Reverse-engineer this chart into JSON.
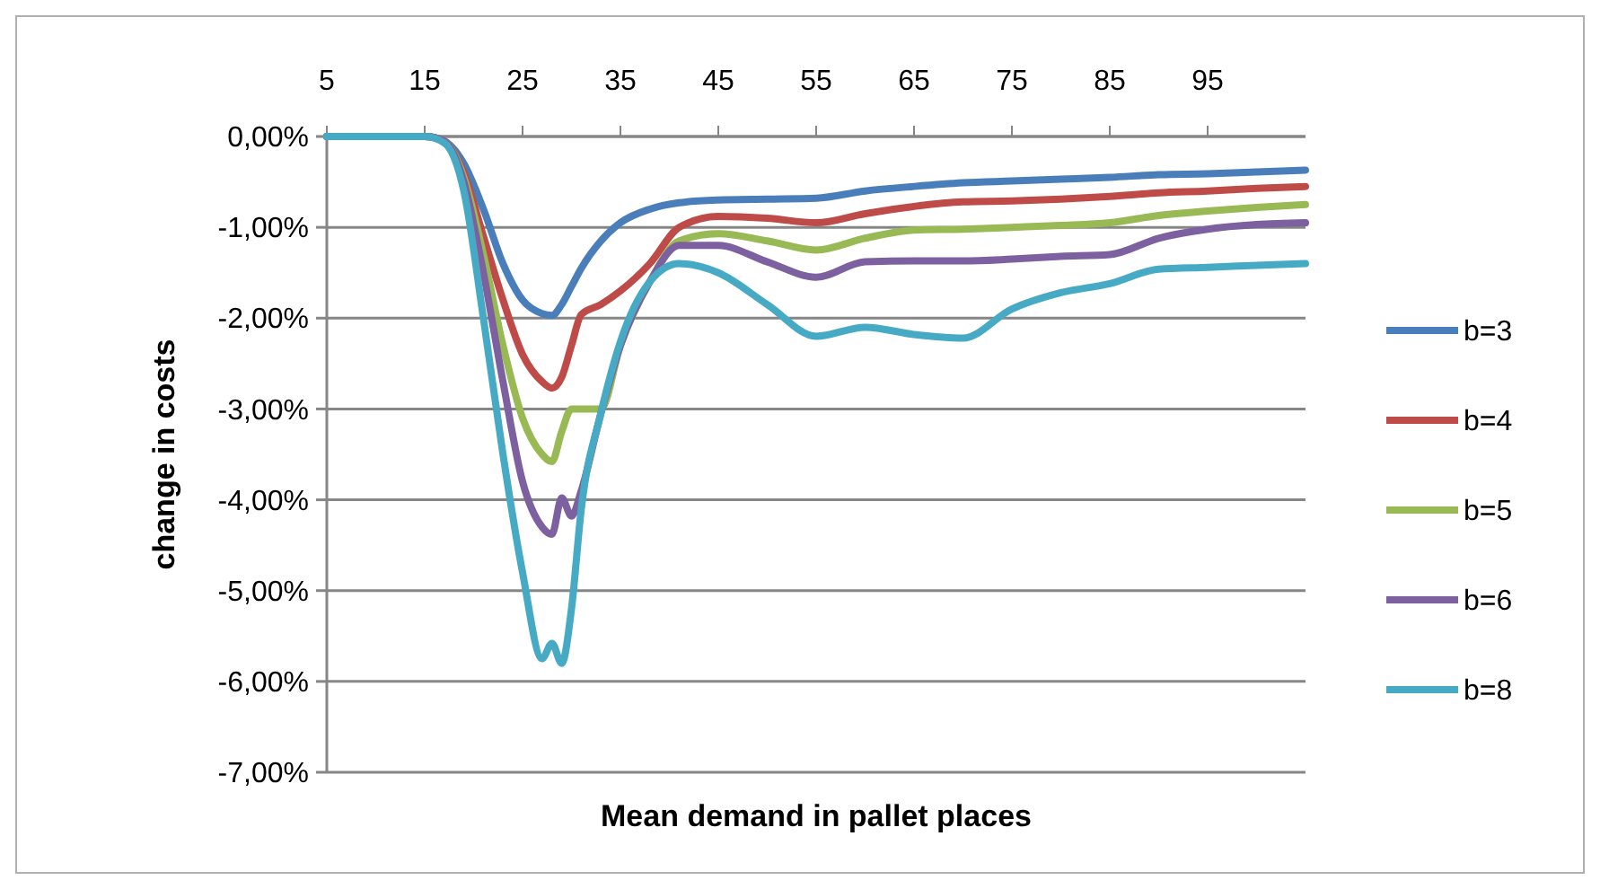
{
  "chart_data": {
    "type": "line",
    "xlabel": "Mean demand in pallet places",
    "ylabel": "change in costs",
    "xlim": [
      5,
      105
    ],
    "xticks": [
      5,
      15,
      25,
      35,
      45,
      55,
      65,
      75,
      85,
      95
    ],
    "ylim": [
      -7,
      0
    ],
    "yticks": [
      {
        "value": 0,
        "label": "0,00%"
      },
      {
        "value": -1,
        "label": "-1,00%"
      },
      {
        "value": -2,
        "label": "-2,00%"
      },
      {
        "value": -3,
        "label": "-3,00%"
      },
      {
        "value": -4,
        "label": "-4,00%"
      },
      {
        "value": -5,
        "label": "-5,00%"
      },
      {
        "value": -6,
        "label": "-6,00%"
      },
      {
        "value": -7,
        "label": "-7,00%"
      }
    ],
    "grid": "y",
    "legend": "right",
    "marker": "none",
    "line_style": "solid",
    "x": [
      5,
      15,
      17,
      19,
      21,
      23,
      25,
      27,
      28,
      29,
      30,
      31,
      33,
      35,
      38,
      41,
      45,
      50,
      55,
      60,
      65,
      70,
      75,
      80,
      85,
      90,
      95,
      100,
      105
    ],
    "series": [
      {
        "name": "b=3",
        "color": "#4a7ebb",
        "values": [
          0,
          0,
          -0.05,
          -0.3,
          -0.8,
          -1.4,
          -1.8,
          -1.95,
          -1.97,
          -1.85,
          -1.65,
          -1.45,
          -1.15,
          -0.95,
          -0.8,
          -0.73,
          -0.7,
          -0.69,
          -0.68,
          -0.6,
          -0.55,
          -0.51,
          -0.49,
          -0.47,
          -0.45,
          -0.42,
          -0.41,
          -0.39,
          -0.37
        ]
      },
      {
        "name": "b=4",
        "color": "#be4b48",
        "values": [
          0,
          0,
          -0.05,
          -0.4,
          -1.1,
          -1.8,
          -2.4,
          -2.7,
          -2.77,
          -2.65,
          -2.3,
          -1.96,
          -1.85,
          -1.7,
          -1.4,
          -1.0,
          -0.88,
          -0.9,
          -0.95,
          -0.85,
          -0.77,
          -0.72,
          -0.71,
          -0.69,
          -0.66,
          -0.62,
          -0.6,
          -0.57,
          -0.55
        ]
      },
      {
        "name": "b=5",
        "color": "#98b954",
        "values": [
          0,
          0,
          -0.05,
          -0.45,
          -1.3,
          -2.3,
          -3.1,
          -3.5,
          -3.58,
          -3.25,
          -3.0,
          -3.0,
          -3.0,
          -2.3,
          -1.6,
          -1.15,
          -1.07,
          -1.15,
          -1.25,
          -1.12,
          -1.03,
          -1.02,
          -1.0,
          -0.98,
          -0.95,
          -0.87,
          -0.82,
          -0.78,
          -0.75
        ]
      },
      {
        "name": "b=6",
        "color": "#7d60a0",
        "values": [
          0,
          0,
          -0.05,
          -0.5,
          -1.5,
          -2.7,
          -3.8,
          -4.3,
          -4.38,
          -3.98,
          -4.18,
          -3.9,
          -3.05,
          -2.3,
          -1.6,
          -1.2,
          -1.2,
          -1.38,
          -1.55,
          -1.38,
          -1.37,
          -1.37,
          -1.35,
          -1.32,
          -1.3,
          -1.12,
          -1.02,
          -0.97,
          -0.95
        ]
      },
      {
        "name": "b=8",
        "color": "#46aac5",
        "values": [
          0,
          0,
          -0.07,
          -0.6,
          -2.0,
          -3.5,
          -4.8,
          -5.75,
          -5.58,
          -5.8,
          -5.2,
          -4.1,
          -3.05,
          -2.26,
          -1.6,
          -1.4,
          -1.5,
          -1.85,
          -2.2,
          -2.1,
          -2.18,
          -2.22,
          -1.9,
          -1.72,
          -1.62,
          -1.46,
          -1.44,
          -1.42,
          -1.4
        ]
      }
    ]
  }
}
